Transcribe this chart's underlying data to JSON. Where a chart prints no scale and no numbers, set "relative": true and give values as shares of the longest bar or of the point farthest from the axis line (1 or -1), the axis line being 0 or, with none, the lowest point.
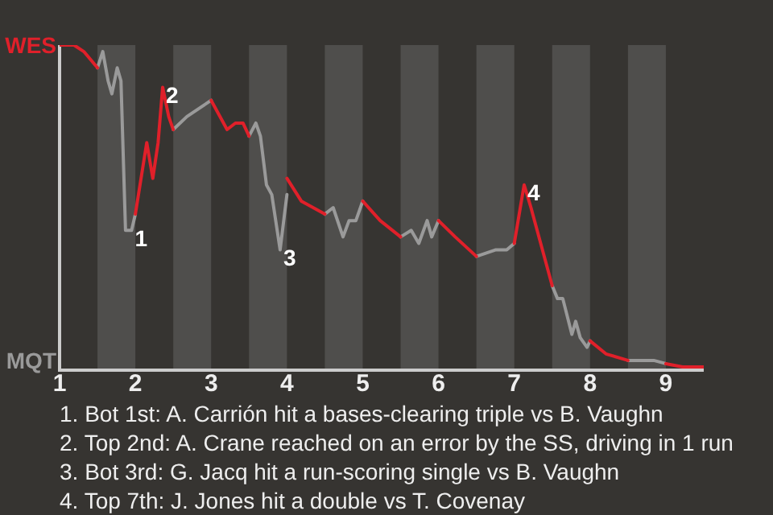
{
  "chart_data": {
    "type": "line",
    "relative": true,
    "legend": "left",
    "xlim": [
      1,
      9.5
    ],
    "xticks": [
      1,
      2,
      3,
      4,
      5,
      6,
      7,
      8,
      9
    ],
    "bands": [
      {
        "axis": "x",
        "from": 1.5,
        "to": 2,
        "color": "#4f4e4c"
      },
      {
        "axis": "x",
        "from": 2.5,
        "to": 3,
        "color": "#4f4e4c"
      },
      {
        "axis": "x",
        "from": 3.5,
        "to": 4,
        "color": "#4f4e4c"
      },
      {
        "axis": "x",
        "from": 4.5,
        "to": 5,
        "color": "#4f4e4c"
      },
      {
        "axis": "x",
        "from": 5.5,
        "to": 6,
        "color": "#4f4e4c"
      },
      {
        "axis": "x",
        "from": 6.5,
        "to": 7,
        "color": "#4f4e4c"
      },
      {
        "axis": "x",
        "from": 7.5,
        "to": 8,
        "color": "#4f4e4c"
      },
      {
        "axis": "x",
        "from": 8.5,
        "to": 9,
        "color": "#4f4e4c"
      }
    ],
    "series": [
      {
        "name": "WES",
        "color": "#e0202a",
        "x": [
          1.0,
          1.19,
          1.32,
          1.5,
          1.75,
          2.0,
          2.15,
          2.23,
          2.3,
          2.36,
          2.44,
          2.5,
          2.75,
          3.0,
          3.21,
          3.32,
          3.42,
          3.5,
          3.75,
          4.0,
          4.19,
          4.5,
          4.75,
          5.0,
          5.23,
          5.5,
          5.75,
          6.0,
          6.22,
          6.5,
          6.75,
          7.0,
          7.13,
          7.22,
          7.5,
          7.75,
          8.0,
          8.21,
          8.5,
          8.75,
          9.0,
          9.22,
          9.5
        ],
        "values": [
          1.0,
          1.0,
          0.98,
          0.93,
          null,
          0.48,
          0.7,
          0.59,
          0.7,
          0.87,
          0.78,
          0.74,
          null,
          0.83,
          0.74,
          0.76,
          0.76,
          0.72,
          null,
          0.59,
          0.52,
          0.48,
          null,
          0.52,
          0.46,
          0.41,
          null,
          0.46,
          0.41,
          0.35,
          null,
          0.39,
          0.57,
          0.5,
          0.26,
          null,
          0.09,
          0.05,
          0.03,
          null,
          0.02,
          0.01,
          0.01
        ]
      },
      {
        "name": "MQT",
        "color": "#9a9a9a",
        "x": [
          1.5,
          1.57,
          1.64,
          1.69,
          1.76,
          1.81,
          1.87,
          1.95,
          2.0,
          2.25,
          2.5,
          2.68,
          3.0,
          3.25,
          3.5,
          3.59,
          3.65,
          3.73,
          3.8,
          3.91,
          4.0,
          4.25,
          4.5,
          4.61,
          4.74,
          4.82,
          4.91,
          5.0,
          5.25,
          5.5,
          5.64,
          5.74,
          5.85,
          5.91,
          6.0,
          6.25,
          6.5,
          6.75,
          6.9,
          7.0,
          7.25,
          7.5,
          7.57,
          7.64,
          7.76,
          7.81,
          7.87,
          7.96,
          8.0,
          8.25,
          8.5,
          8.84,
          9.0
        ],
        "values": [
          0.93,
          0.98,
          0.89,
          0.85,
          0.93,
          0.89,
          0.43,
          0.43,
          0.48,
          null,
          0.74,
          0.78,
          0.83,
          null,
          0.72,
          0.76,
          0.72,
          0.57,
          0.54,
          0.37,
          0.54,
          null,
          0.48,
          0.5,
          0.41,
          0.46,
          0.46,
          0.52,
          null,
          0.41,
          0.43,
          0.39,
          0.46,
          0.41,
          0.46,
          null,
          0.35,
          0.37,
          0.37,
          0.39,
          null,
          0.26,
          0.22,
          0.22,
          0.11,
          0.15,
          0.1,
          0.07,
          0.09,
          null,
          0.03,
          0.03,
          0.02
        ]
      }
    ],
    "annotations": [
      {
        "text": "1",
        "x": 1.95,
        "y": 0.43
      },
      {
        "text": "2",
        "x": 2.36,
        "y": 0.87
      },
      {
        "text": "3",
        "x": 3.91,
        "y": 0.37
      },
      {
        "text": "4",
        "x": 7.13,
        "y": 0.57
      },
      "1. Bot 1st: A. Carrión hit a bases-clearing triple vs B. Vaughn",
      "2. Top 2nd: A. Crane reached on an error by the SS, driving in 1 run",
      "3. Bot 3rd: G. Jacq hit a run-scoring single vs B. Vaughn",
      "4. Top 7th: J. Jones hit a double vs T. Covenay"
    ]
  }
}
